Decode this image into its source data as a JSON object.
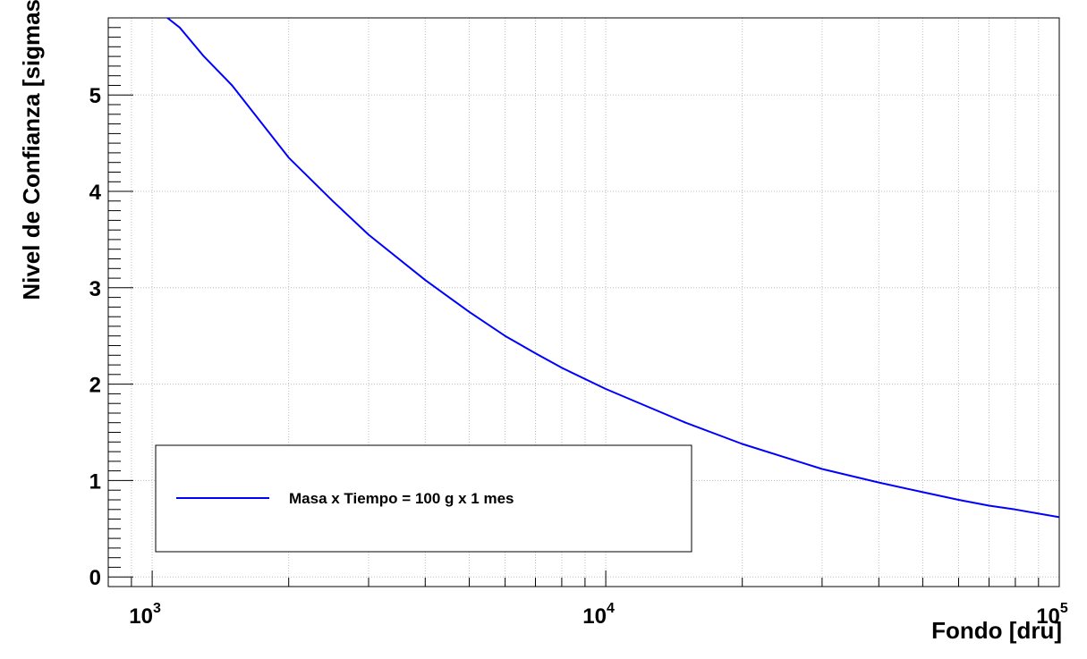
{
  "chart_data": {
    "type": "line",
    "title": "",
    "xlabel": "Fondo [dru]",
    "ylabel": "Nivel de Confianza [sigmas]",
    "xscale": "log",
    "xlim": [
      800,
      100000
    ],
    "ylim": [
      -0.1,
      5.8
    ],
    "grid": true,
    "legend_position": "bottom-left",
    "x_ticks": [
      {
        "base": "10",
        "exp": "3",
        "value": 1000
      },
      {
        "base": "10",
        "exp": "4",
        "value": 10000
      },
      {
        "base": "10",
        "exp": "5",
        "value": 100000
      }
    ],
    "y_ticks": [
      0,
      1,
      2,
      3,
      4,
      5
    ],
    "series": [
      {
        "name": "Masa x Tiempo = 100 g x 1 mes",
        "color": "#0000ff",
        "x": [
          1080,
          1150,
          1300,
          1500,
          2000,
          2500,
          3000,
          4000,
          5000,
          6000,
          7000,
          8000,
          10000,
          15000,
          20000,
          30000,
          40000,
          50000,
          60000,
          70000,
          80000,
          100000
        ],
        "y": [
          5.8,
          5.7,
          5.4,
          5.1,
          4.35,
          3.9,
          3.55,
          3.08,
          2.75,
          2.5,
          2.32,
          2.17,
          1.95,
          1.6,
          1.38,
          1.12,
          0.98,
          0.88,
          0.8,
          0.74,
          0.7,
          0.62
        ]
      }
    ]
  }
}
